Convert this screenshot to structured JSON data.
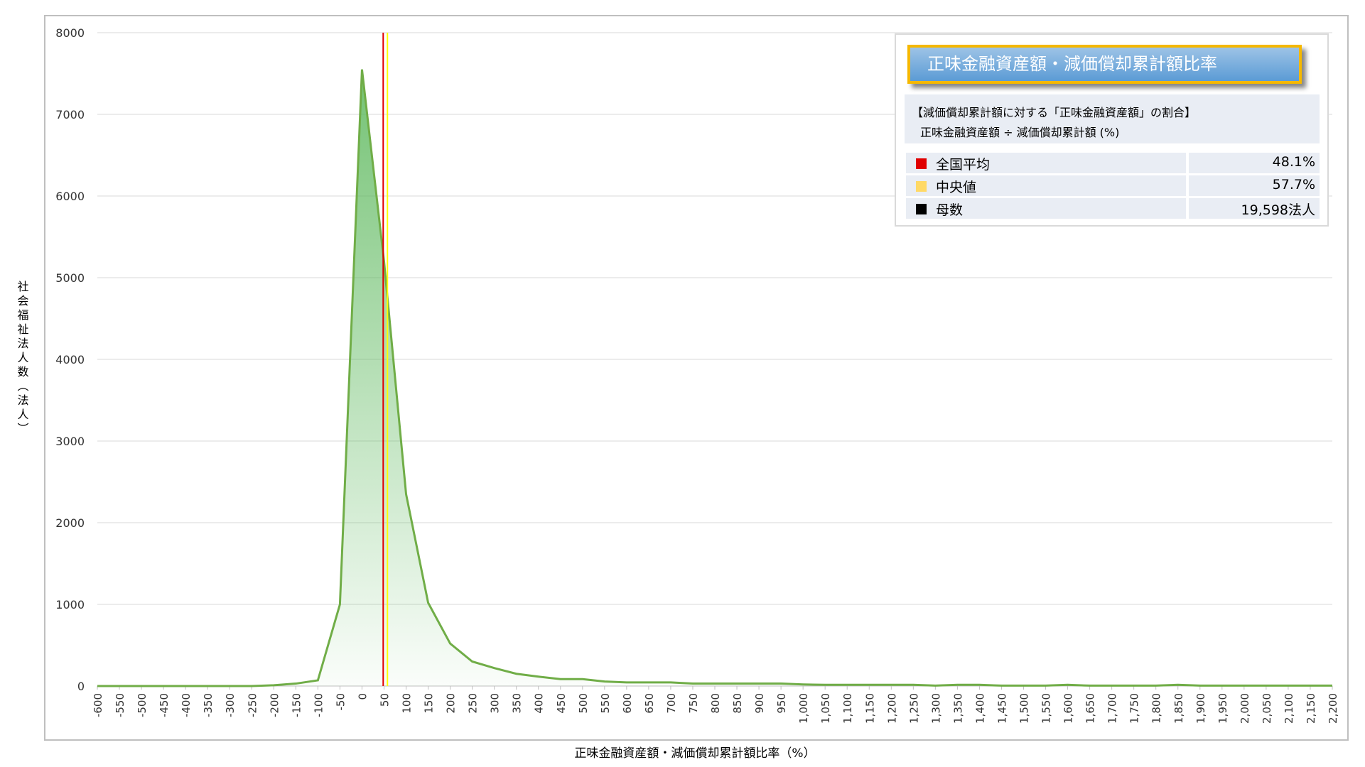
{
  "chart_data": {
    "type": "area",
    "y_axis_label": "社会福祉法人数（法人）",
    "x_axis_label": "正味金融資産額・減価償却累計額比率（%）",
    "x": [
      -600,
      -550,
      -500,
      -450,
      -400,
      -350,
      -300,
      -250,
      -200,
      -150,
      -100,
      -50,
      0,
      50,
      100,
      150,
      200,
      250,
      300,
      350,
      400,
      450,
      500,
      550,
      600,
      650,
      700,
      750,
      800,
      850,
      900,
      950,
      1000,
      1050,
      1100,
      1150,
      1200,
      1250,
      1300,
      1350,
      1400,
      1450,
      1500,
      1550,
      1600,
      1650,
      1700,
      1750,
      1800,
      1850,
      1900,
      1950,
      2000,
      2050,
      2100,
      2150,
      2200
    ],
    "values": [
      0,
      0,
      0,
      0,
      0,
      0,
      0,
      0,
      10,
      30,
      70,
      1000,
      7550,
      5200,
      2350,
      1020,
      520,
      300,
      220,
      150,
      115,
      85,
      85,
      55,
      45,
      45,
      45,
      30,
      30,
      30,
      30,
      30,
      20,
      15,
      15,
      15,
      15,
      15,
      5,
      15,
      15,
      5,
      5,
      5,
      15,
      5,
      5,
      5,
      5,
      15,
      5,
      5,
      5,
      5,
      5,
      5,
      5
    ],
    "color": "#70ad47",
    "xlim": [
      -600,
      2200
    ],
    "xticks": [
      -600,
      -550,
      -500,
      -450,
      -400,
      -350,
      -300,
      -250,
      -200,
      -150,
      -100,
      -50,
      0,
      50,
      100,
      150,
      200,
      250,
      300,
      350,
      400,
      450,
      500,
      550,
      600,
      650,
      700,
      750,
      800,
      850,
      900,
      950,
      {
        "value": 1000,
        "label": "1,000"
      },
      {
        "value": 1050,
        "label": "1,050"
      },
      {
        "value": 1100,
        "label": "1,100"
      },
      {
        "value": 1150,
        "label": "1,150"
      },
      {
        "value": 1200,
        "label": "1,200"
      },
      {
        "value": 1250,
        "label": "1,250"
      },
      {
        "value": 1300,
        "label": "1,300"
      },
      {
        "value": 1350,
        "label": "1,350"
      },
      {
        "value": 1400,
        "label": "1,400"
      },
      {
        "value": 1450,
        "label": "1,450"
      },
      {
        "value": 1500,
        "label": "1,500"
      },
      {
        "value": 1550,
        "label": "1,550"
      },
      {
        "value": 1600,
        "label": "1,600"
      },
      {
        "value": 1650,
        "label": "1,650"
      },
      {
        "value": 1700,
        "label": "1,700"
      },
      {
        "value": 1750,
        "label": "1,750"
      },
      {
        "value": 1800,
        "label": "1,800"
      },
      {
        "value": 1850,
        "label": "1,850"
      },
      {
        "value": 1900,
        "label": "1,900"
      },
      {
        "value": 1950,
        "label": "1,950"
      },
      {
        "value": 2000,
        "label": "2,000"
      },
      {
        "value": 2050,
        "label": "2,050"
      },
      {
        "value": 2100,
        "label": "2,100"
      },
      {
        "value": 2150,
        "label": "2,150"
      },
      {
        "value": 2200,
        "label": "2,200"
      }
    ],
    "ylim": [
      0,
      8000
    ],
    "yticks": [
      0,
      1000,
      2000,
      3000,
      4000,
      5000,
      6000,
      7000,
      8000
    ],
    "grid": true,
    "legend": {
      "title": "正味金融資産額・減価償却累計額比率",
      "subtitle": "【減価償却累計額に対する「正味金融資産額」の割合】",
      "formula": "正味金融資産額 ÷ 減価償却累計額 (%)",
      "stats": [
        {
          "name": "全国平均",
          "color": "#e00000",
          "value": 48.1,
          "value_label": "48.1%"
        },
        {
          "name": "中央値",
          "color": "#ffd966",
          "line_color": "#ffff00",
          "value": 57.7,
          "value_label": "57.7%"
        },
        {
          "name": "母数",
          "color": "#000000",
          "value": 19598,
          "value_label": "19,598法人"
        }
      ]
    }
  }
}
